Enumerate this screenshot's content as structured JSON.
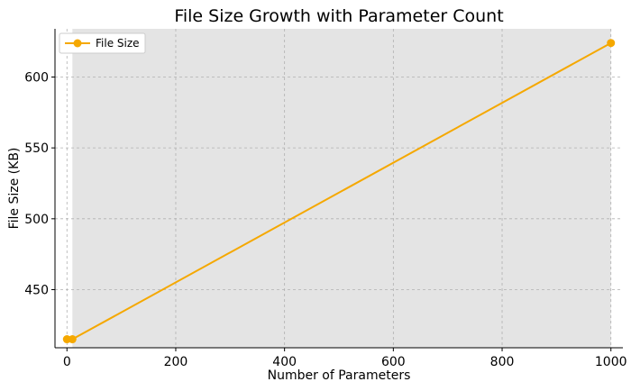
{
  "chart_data": {
    "type": "line",
    "title": "File Size Growth with Parameter Count",
    "xlabel": "Number of Parameters",
    "ylabel": "File Size (KB)",
    "xlim": [
      -22,
      1022
    ],
    "ylim": [
      409,
      634
    ],
    "xticks": [
      0,
      200,
      400,
      600,
      800,
      1000
    ],
    "yticks": [
      450,
      500,
      550,
      600
    ],
    "grid": true,
    "legend_position": "top-left",
    "highlight_region": {
      "x_start": 10,
      "x_end": 1000,
      "color": "#e4e4e4"
    },
    "series": [
      {
        "name": "File Size",
        "color": "#f5a800",
        "x": [
          0,
          10,
          1000
        ],
        "y": [
          415,
          415,
          624
        ]
      }
    ]
  }
}
